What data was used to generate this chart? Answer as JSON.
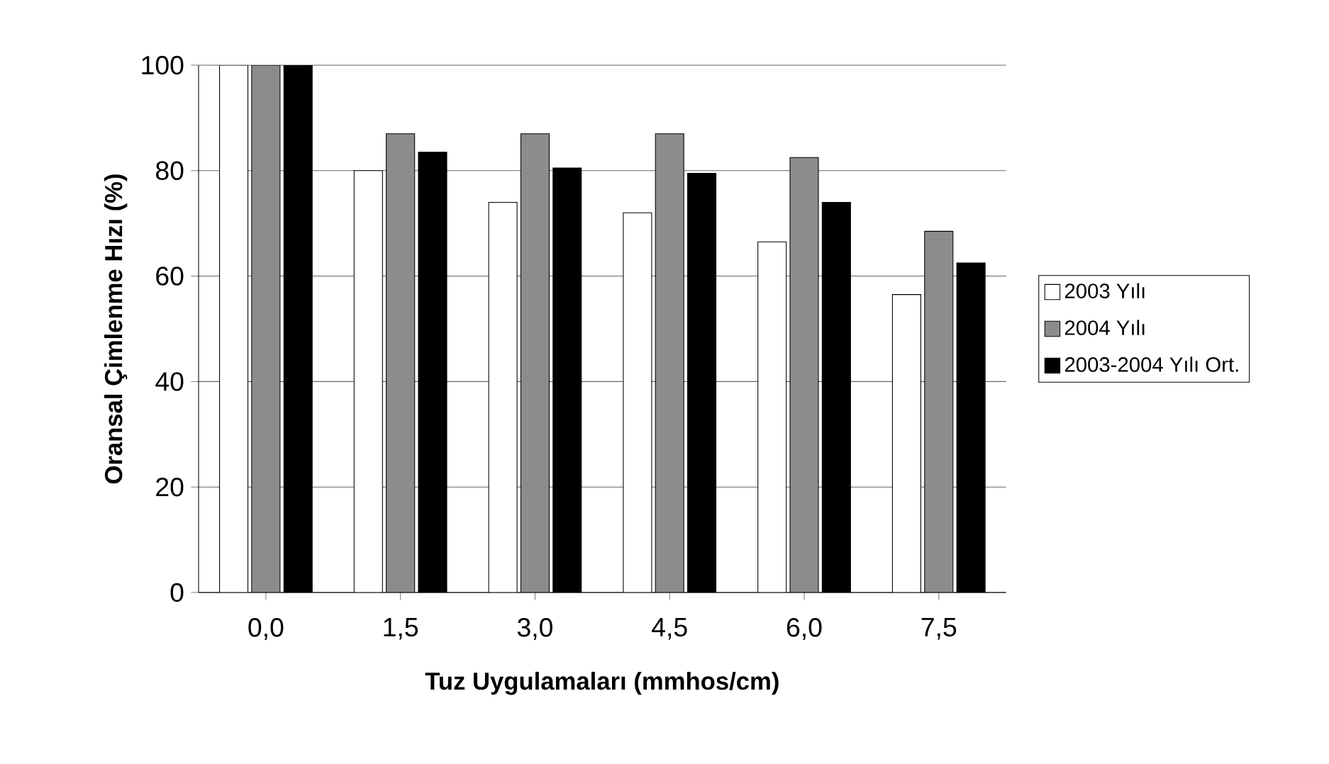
{
  "chart_data": {
    "type": "bar",
    "xlabel": "Tuz Uygulamaları (mmhos/cm)",
    "ylabel": "Oransal Çimlenme Hızı (%)",
    "categories": [
      "0,0",
      "1,5",
      "3,0",
      "4,5",
      "6,0",
      "7,5"
    ],
    "series": [
      {
        "name": "2003 Yılı",
        "color": "#ffffff",
        "values": [
          100,
          80,
          74,
          72,
          66.5,
          56.5
        ]
      },
      {
        "name": "2004 Yılı",
        "color": "#8c8c8c",
        "values": [
          100,
          87,
          87,
          87,
          82.5,
          68.5
        ]
      },
      {
        "name": "2003-2004 Yılı Ort.",
        "color": "#000000",
        "values": [
          100,
          83.5,
          80.5,
          79.5,
          74,
          62.5
        ]
      }
    ],
    "ylim": [
      0,
      100
    ],
    "yticks": [
      0,
      20,
      40,
      60,
      80,
      100
    ],
    "grid": "y",
    "legend": "right"
  }
}
